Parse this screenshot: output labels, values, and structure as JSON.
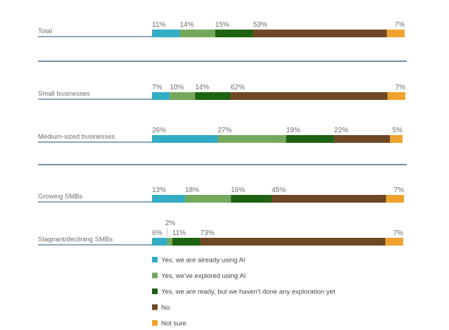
{
  "chart_data": {
    "type": "bar",
    "orientation": "horizontal",
    "stacked": true,
    "value_unit": "%",
    "categories": [
      "Total",
      "Small businesses",
      "Medium-sized businesses",
      "Growing SMBs",
      "Stagnant/declining SMBs"
    ],
    "series": [
      {
        "name": "Yes, we are already using AI",
        "color": "#33adc4",
        "values": [
          11,
          7,
          26,
          13,
          6
        ]
      },
      {
        "name": "Yes, we've explored using AI",
        "color": "#74a95d",
        "values": [
          14,
          10,
          27,
          18,
          2
        ]
      },
      {
        "name": "Yes, we are ready, but we haven't done any exploration yet",
        "color": "#1d6311",
        "values": [
          15,
          14,
          19,
          16,
          11
        ]
      },
      {
        "name": "No",
        "color": "#6e4824",
        "values": [
          53,
          62,
          22,
          45,
          73
        ]
      },
      {
        "name": "Not sure",
        "color": "#f0a22e",
        "values": [
          7,
          7,
          5,
          7,
          7
        ]
      }
    ],
    "legend_position": "bottom",
    "label_color": "#6d6d6d",
    "rule_color": "#1f4e6b"
  }
}
